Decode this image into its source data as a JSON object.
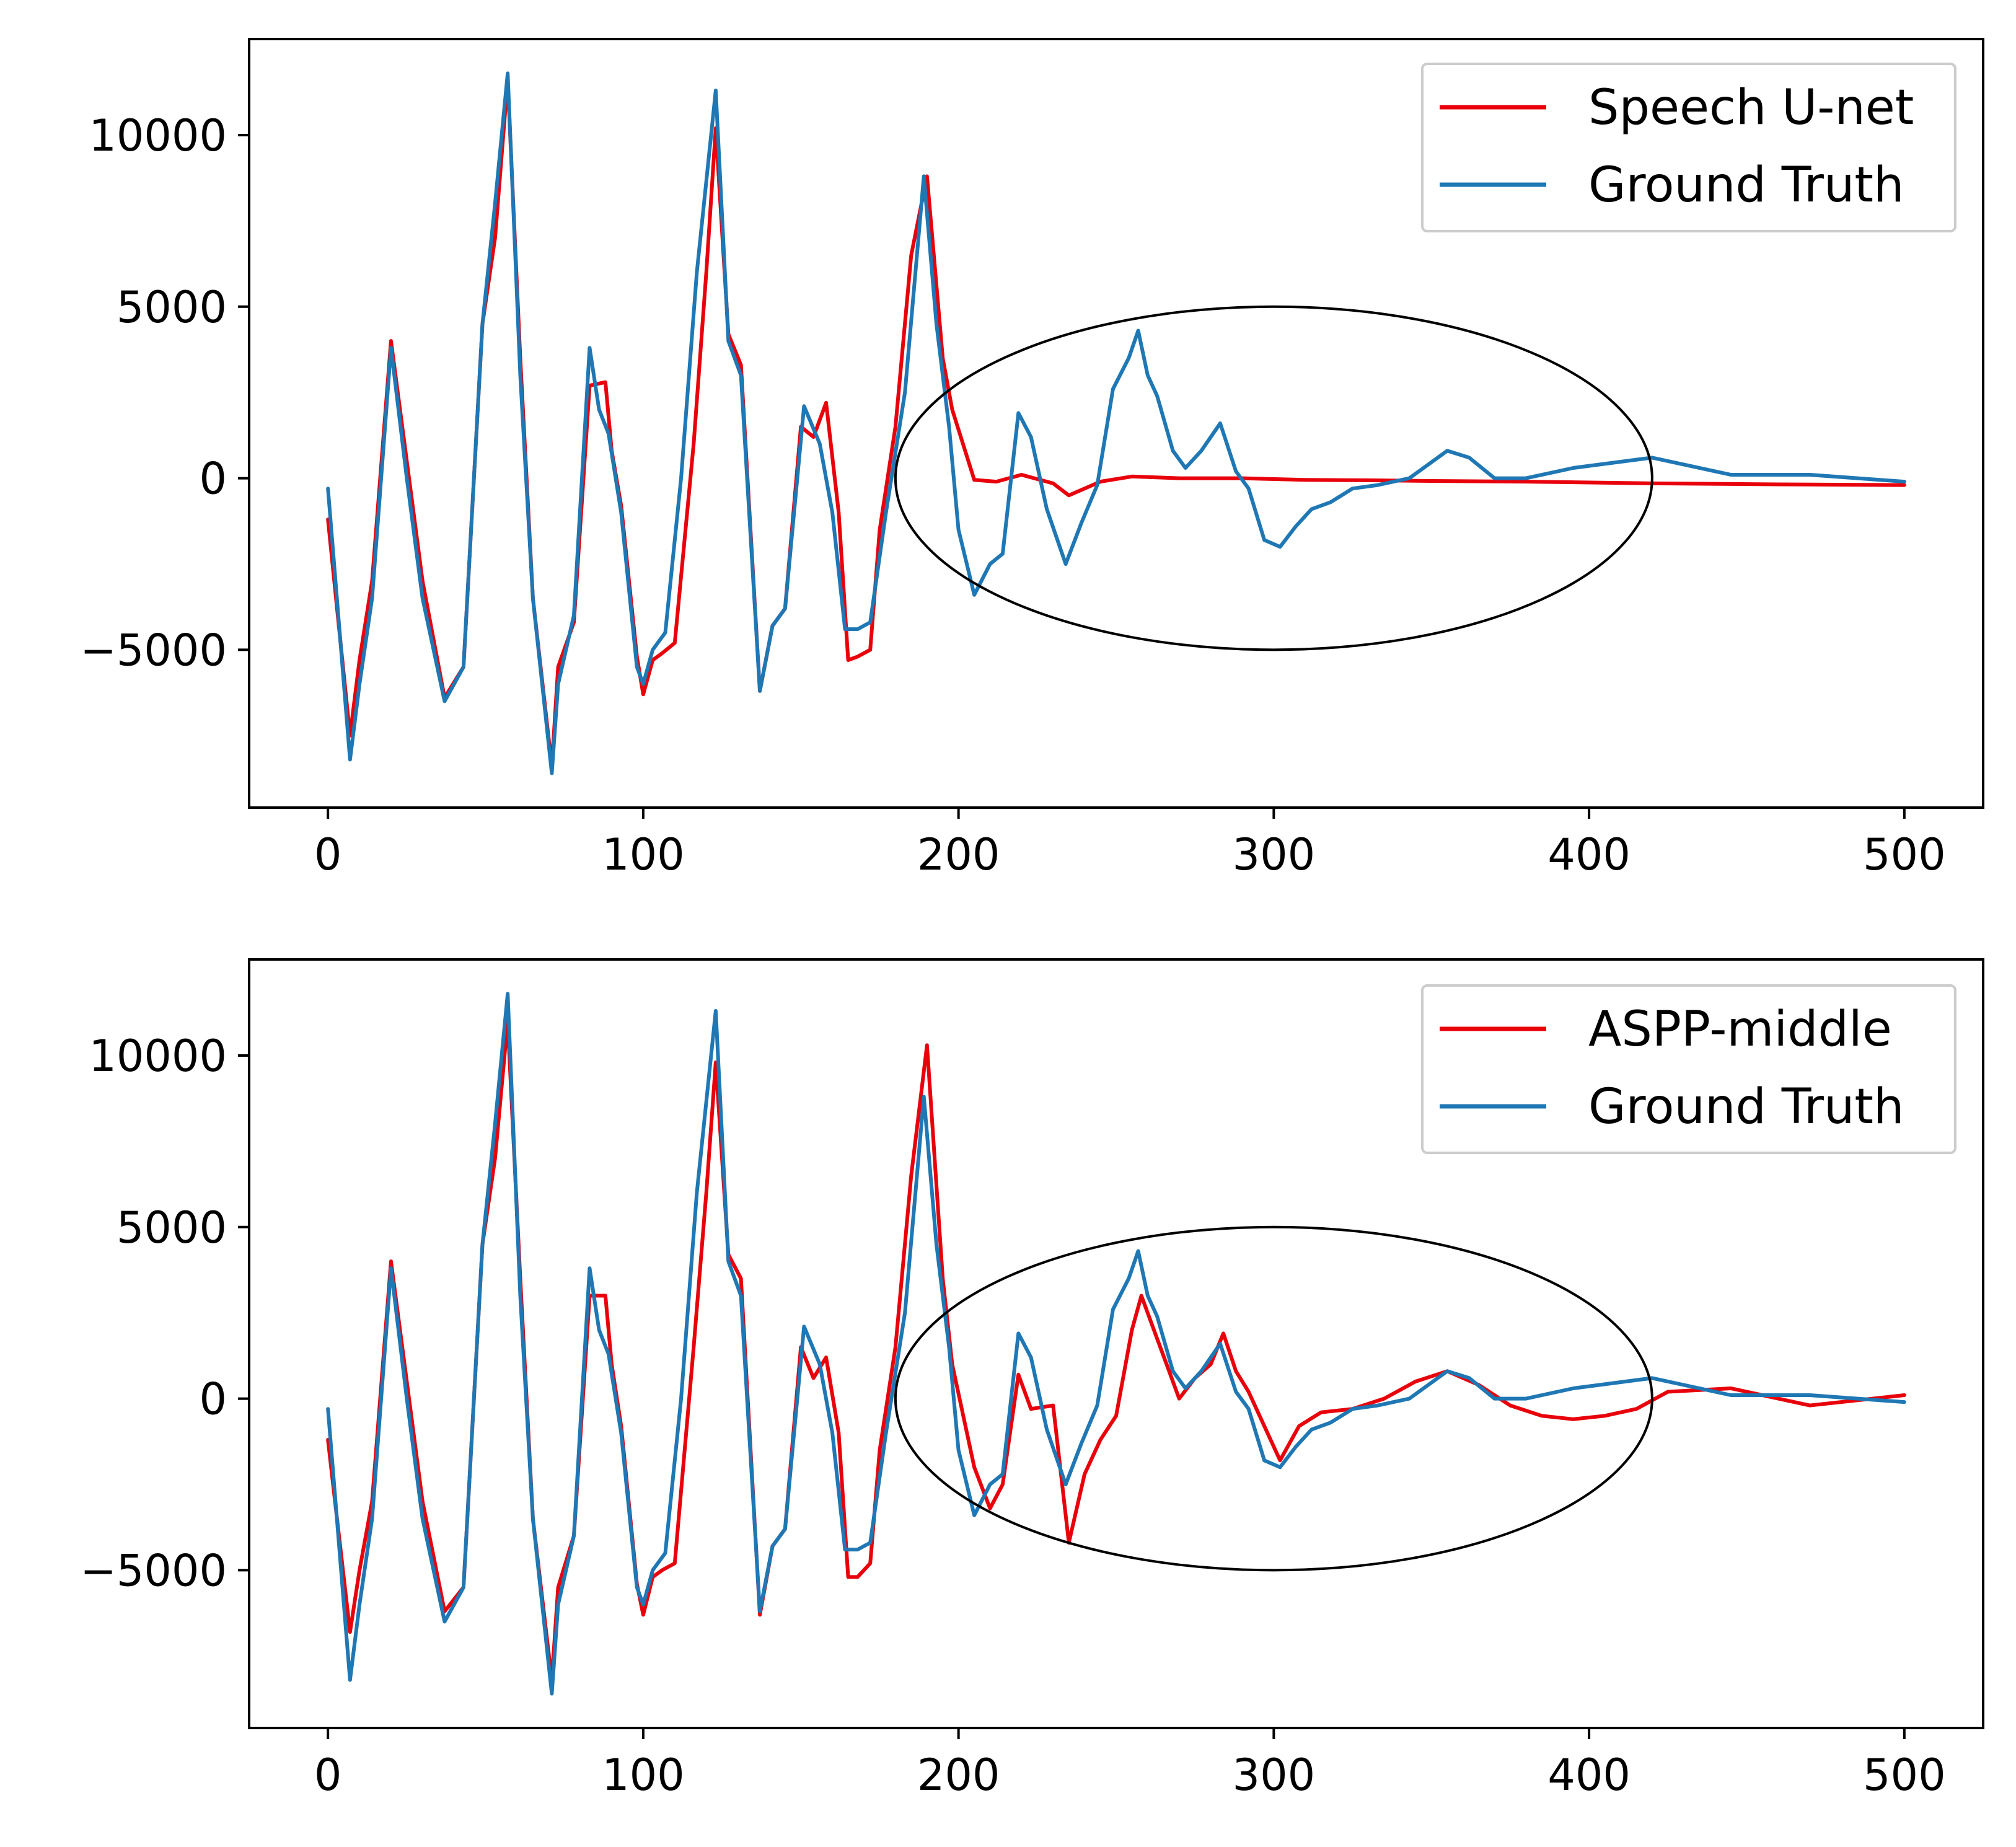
{
  "chart_data": [
    {
      "type": "line",
      "xlim": [
        -25,
        525
      ],
      "ylim": [
        -9600,
        12800
      ],
      "xticks": [
        0,
        100,
        200,
        300,
        400,
        500
      ],
      "yticks": [
        -5000,
        0,
        5000,
        10000
      ],
      "xtick_labels": [
        "0",
        "100",
        "200",
        "300",
        "400",
        "500"
      ],
      "ytick_labels": [
        "−5000",
        "0",
        "5000",
        "10000"
      ],
      "legend_position": "upper-right",
      "annotation": {
        "shape": "ellipse",
        "center": [
          300,
          0
        ],
        "x_radius": 120,
        "y_radius": 5000
      },
      "series": [
        {
          "name": "Speech U-net",
          "color": "#e8000b",
          "x": [
            0,
            7,
            10,
            14,
            20,
            25,
            30,
            37,
            43,
            49,
            53,
            57,
            61,
            65,
            71,
            73,
            78,
            83,
            88,
            90,
            93,
            98,
            100,
            103,
            106,
            110,
            116,
            120,
            123,
            127,
            131,
            137,
            141,
            145,
            150,
            154,
            158,
            162,
            165,
            168,
            172,
            175,
            180,
            185,
            190,
            195,
            198,
            205,
            212,
            220,
            230,
            235,
            245,
            255,
            270,
            290,
            310,
            330,
            350,
            380,
            420,
            460,
            500
          ],
          "y": [
            -1200,
            -7500,
            -5300,
            -3000,
            4000,
            500,
            -3000,
            -6400,
            -5500,
            4500,
            7000,
            11600,
            3500,
            -3500,
            -8400,
            -5500,
            -4200,
            2700,
            2800,
            800,
            -800,
            -5200,
            -6300,
            -5300,
            -5100,
            -4800,
            1000,
            6000,
            10200,
            4200,
            3300,
            -6200,
            -4300,
            -3800,
            1500,
            1200,
            2200,
            -1000,
            -5300,
            -5200,
            -5000,
            -1500,
            1500,
            6500,
            8800,
            3500,
            2000,
            -50,
            -100,
            100,
            -150,
            -500,
            -100,
            50,
            0,
            0,
            -50,
            -60,
            -80,
            -100,
            -150,
            -180,
            -200
          ]
        },
        {
          "name": "Ground Truth",
          "color": "#1f77b4",
          "x": [
            0,
            7,
            10,
            14,
            20,
            25,
            30,
            37,
            43,
            49,
            53,
            57,
            61,
            65,
            71,
            73,
            78,
            83,
            86,
            89,
            93,
            98,
            100,
            103,
            107,
            112,
            117,
            123,
            127,
            131,
            137,
            141,
            145,
            151,
            156,
            160,
            164,
            168,
            172,
            177,
            183,
            189,
            193,
            197,
            200,
            205,
            210,
            214,
            219,
            223,
            228,
            234,
            239,
            244,
            249,
            254,
            257,
            260,
            263,
            268,
            272,
            277,
            283,
            288,
            292,
            297,
            302,
            307,
            312,
            318,
            325,
            333,
            343,
            355,
            362,
            370,
            380,
            395,
            420,
            445,
            470,
            500
          ],
          "y": [
            -300,
            -8200,
            -6000,
            -3500,
            3800,
            0,
            -3500,
            -6500,
            -5500,
            4500,
            8000,
            11800,
            3000,
            -3500,
            -8600,
            -6000,
            -4000,
            3800,
            2000,
            1300,
            -1000,
            -5500,
            -6000,
            -5000,
            -4500,
            0,
            6000,
            11300,
            4000,
            3000,
            -6200,
            -4300,
            -3800,
            2100,
            1000,
            -1000,
            -4400,
            -4400,
            -4200,
            -1000,
            2500,
            8800,
            4500,
            1500,
            -1500,
            -3400,
            -2500,
            -2200,
            1900,
            1200,
            -900,
            -2500,
            -1300,
            -200,
            2600,
            3500,
            4300,
            3000,
            2400,
            800,
            300,
            800,
            1600,
            200,
            -300,
            -1800,
            -2000,
            -1400,
            -900,
            -700,
            -300,
            -200,
            0,
            800,
            600,
            0,
            0,
            300,
            600,
            100,
            100,
            -100
          ]
        }
      ]
    },
    {
      "type": "line",
      "xlim": [
        -25,
        525
      ],
      "ylim": [
        -9600,
        12800
      ],
      "xticks": [
        0,
        100,
        200,
        300,
        400,
        500
      ],
      "yticks": [
        -5000,
        0,
        5000,
        10000
      ],
      "xtick_labels": [
        "0",
        "100",
        "200",
        "300",
        "400",
        "500"
      ],
      "ytick_labels": [
        "−5000",
        "0",
        "5000",
        "10000"
      ],
      "legend_position": "upper-right",
      "annotation": {
        "shape": "ellipse",
        "center": [
          300,
          0
        ],
        "x_radius": 120,
        "y_radius": 5000
      },
      "series": [
        {
          "name": "ASPP-middle",
          "color": "#e8000b",
          "x": [
            0,
            7,
            10,
            14,
            20,
            25,
            30,
            37,
            43,
            49,
            53,
            57,
            61,
            65,
            71,
            73,
            78,
            83,
            88,
            90,
            93,
            98,
            100,
            103,
            106,
            110,
            116,
            120,
            123,
            127,
            131,
            137,
            141,
            145,
            150,
            154,
            158,
            162,
            165,
            168,
            172,
            175,
            180,
            185,
            190,
            195,
            198,
            205,
            210,
            214,
            219,
            223,
            230,
            235,
            240,
            245,
            250,
            255,
            258,
            262,
            266,
            270,
            275,
            280,
            284,
            288,
            292,
            297,
            302,
            308,
            315,
            325,
            335,
            345,
            355,
            365,
            375,
            385,
            395,
            405,
            415,
            425,
            445,
            470,
            500
          ],
          "y": [
            -1200,
            -6800,
            -5000,
            -3000,
            4000,
            500,
            -3000,
            -6200,
            -5500,
            4500,
            7000,
            11000,
            3500,
            -3500,
            -8200,
            -5500,
            -4000,
            3000,
            3000,
            1000,
            -800,
            -5400,
            -6300,
            -5200,
            -5000,
            -4800,
            1500,
            6000,
            9800,
            4200,
            3500,
            -6300,
            -4300,
            -3800,
            1500,
            600,
            1200,
            -1000,
            -5200,
            -5200,
            -4800,
            -1500,
            1500,
            6500,
            10300,
            3500,
            1000,
            -2000,
            -3200,
            -2500,
            700,
            -300,
            -200,
            -4200,
            -2200,
            -1200,
            -500,
            2000,
            3000,
            2000,
            1000,
            0,
            600,
            1000,
            1900,
            800,
            200,
            -800,
            -1800,
            -800,
            -400,
            -300,
            0,
            500,
            800,
            400,
            -200,
            -500,
            -600,
            -500,
            -300,
            200,
            300,
            -200,
            100
          ]
        },
        {
          "name": "Ground Truth",
          "color": "#1f77b4",
          "x": [
            0,
            7,
            10,
            14,
            20,
            25,
            30,
            37,
            43,
            49,
            53,
            57,
            61,
            65,
            71,
            73,
            78,
            83,
            86,
            89,
            93,
            98,
            100,
            103,
            107,
            112,
            117,
            123,
            127,
            131,
            137,
            141,
            145,
            151,
            156,
            160,
            164,
            168,
            172,
            177,
            183,
            189,
            193,
            197,
            200,
            205,
            210,
            214,
            219,
            223,
            228,
            234,
            239,
            244,
            249,
            254,
            257,
            260,
            263,
            268,
            272,
            277,
            283,
            288,
            292,
            297,
            302,
            307,
            312,
            318,
            325,
            333,
            343,
            355,
            362,
            370,
            380,
            395,
            420,
            445,
            470,
            500
          ],
          "y": [
            -300,
            -8200,
            -6000,
            -3500,
            3800,
            0,
            -3500,
            -6500,
            -5500,
            4500,
            8000,
            11800,
            3000,
            -3500,
            -8600,
            -6000,
            -4000,
            3800,
            2000,
            1300,
            -1000,
            -5500,
            -6000,
            -5000,
            -4500,
            0,
            6000,
            11300,
            4000,
            3000,
            -6200,
            -4300,
            -3800,
            2100,
            1000,
            -1000,
            -4400,
            -4400,
            -4200,
            -1000,
            2500,
            8800,
            4500,
            1500,
            -1500,
            -3400,
            -2500,
            -2200,
            1900,
            1200,
            -900,
            -2500,
            -1300,
            -200,
            2600,
            3500,
            4300,
            3000,
            2400,
            800,
            300,
            800,
            1600,
            200,
            -300,
            -1800,
            -2000,
            -1400,
            -900,
            -700,
            -300,
            -200,
            0,
            800,
            600,
            0,
            0,
            300,
            600,
            100,
            100,
            -100
          ]
        }
      ]
    }
  ]
}
